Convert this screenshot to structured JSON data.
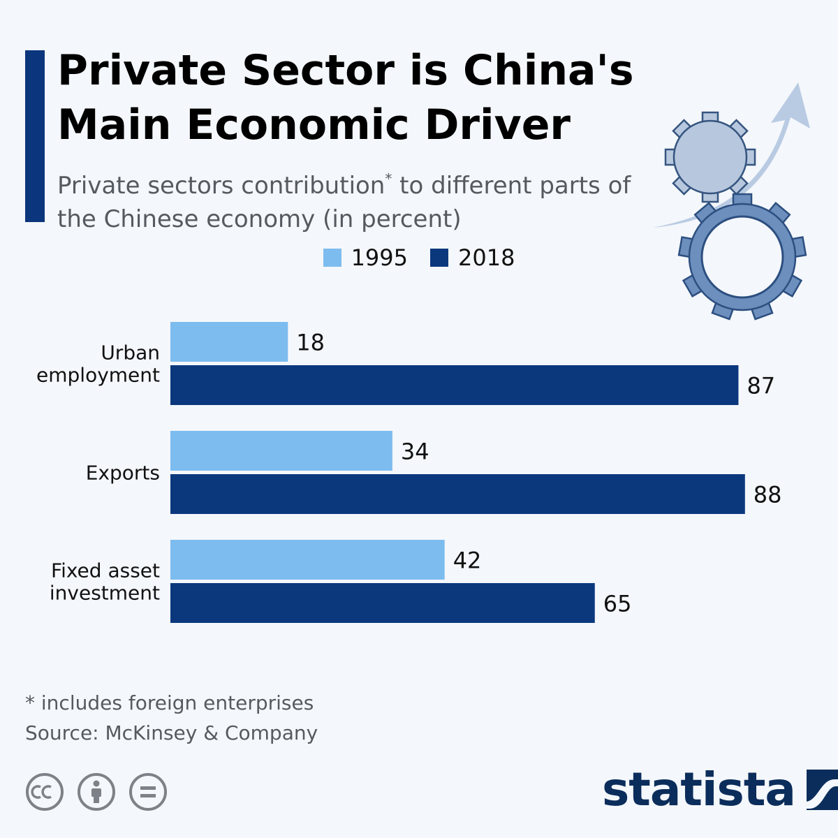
{
  "header": {
    "title": "Private Sector is China's Main Economic Driver",
    "subtitle_main": "Private sectors contribution",
    "subtitle_star": "*",
    "subtitle_rest": " to different parts of the Chinese economy (in percent)"
  },
  "colors": {
    "accent": "#0b357c",
    "series_1995": "#7dbcef",
    "series_2018": "#0b387d",
    "text_muted": "#555a60",
    "brand": "#0b2d5b"
  },
  "chart_data": {
    "type": "bar",
    "orientation": "horizontal",
    "title": "Private Sector is China's Main Economic Driver",
    "subtitle": "Private sectors contribution* to different parts of the Chinese economy (in percent)",
    "categories": [
      "Urban employment",
      "Exports",
      "Fixed asset investment"
    ],
    "category_lines": [
      [
        "Urban",
        "employment"
      ],
      [
        "Exports"
      ],
      [
        "Fixed asset",
        "investment"
      ]
    ],
    "series": [
      {
        "name": "1995",
        "values": [
          18,
          34,
          42
        ]
      },
      {
        "name": "2018",
        "values": [
          87,
          88,
          65
        ]
      }
    ],
    "xlim": [
      0,
      100
    ],
    "xlabel": "",
    "ylabel": "",
    "grid": false,
    "legend_position": "top-center"
  },
  "footer": {
    "footnote": "* includes foreign enterprises",
    "source": "Source: McKinsey & Company",
    "brand": "statista",
    "license_icons": [
      "cc-icon",
      "attribution-icon",
      "no-derivatives-icon"
    ]
  }
}
